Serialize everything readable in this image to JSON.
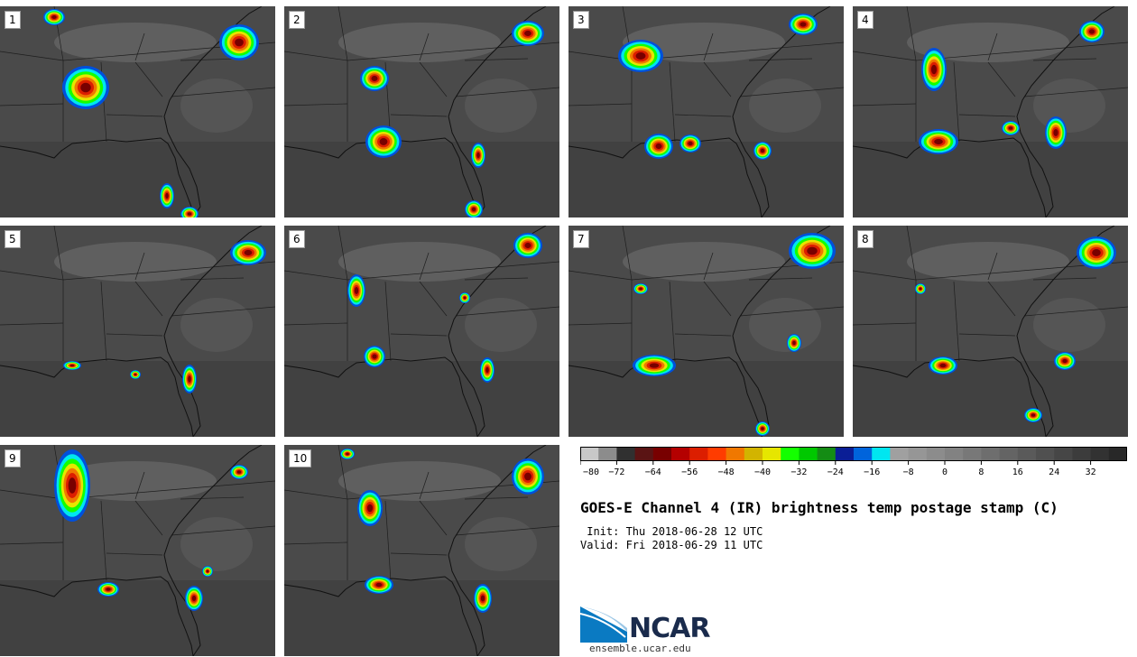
{
  "panels": [
    {
      "label": "1"
    },
    {
      "label": "2"
    },
    {
      "label": "3"
    },
    {
      "label": "4"
    },
    {
      "label": "5"
    },
    {
      "label": "6"
    },
    {
      "label": "7"
    },
    {
      "label": "8"
    },
    {
      "label": "9"
    },
    {
      "label": "10"
    }
  ],
  "colorbar": {
    "ticks": [
      "−80",
      "−72",
      "−64",
      "−56",
      "−48",
      "−40",
      "−32",
      "−24",
      "−16",
      "−8",
      "0",
      "8",
      "16",
      "24",
      "32"
    ],
    "colors": [
      "#c8c8c8",
      "#8c8c8c",
      "#303030",
      "#5a1414",
      "#780000",
      "#b40000",
      "#dc1e00",
      "#ff3c00",
      "#f07800",
      "#d2b400",
      "#e6e600",
      "#14ff00",
      "#00c800",
      "#148c14",
      "#0a1e96",
      "#0064dc",
      "#00e6f0",
      "#a0a0a0",
      "#969696",
      "#8c8c8c",
      "#828282",
      "#787878",
      "#6e6e6e",
      "#646464",
      "#5a5a5a",
      "#505050",
      "#464646",
      "#3c3c3c",
      "#323232",
      "#282828"
    ]
  },
  "title": "GOES-E Channel 4 (IR) brightness temp postage stamp (C)",
  "init": " Init: Thu 2018-06-28 12 UTC",
  "valid": "Valid: Fri 2018-06-29 11 UTC",
  "logo": {
    "text": "NCAR",
    "site": "ensemble.ucar.edu"
  }
}
